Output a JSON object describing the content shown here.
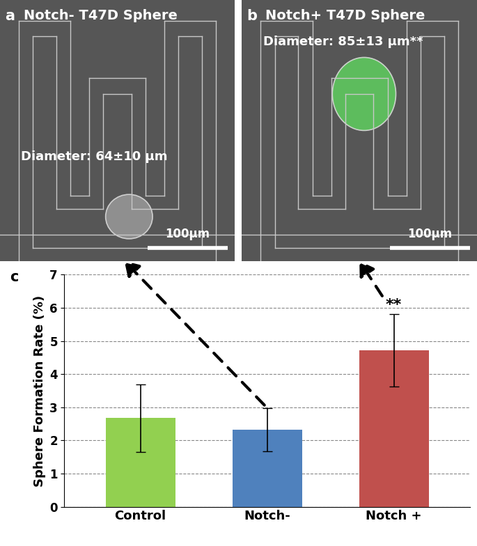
{
  "panels": [
    {
      "label": "a",
      "title": "Notch- T47D Sphere",
      "annotation": "Diameter: 64±10 μm",
      "scale_bar": "100μm"
    },
    {
      "label": "b",
      "title": "Notch+ T47D Sphere",
      "annotation": "Diameter: 85±13 μm**",
      "scale_bar": "100μm"
    }
  ],
  "chart_data": {
    "type": "bar",
    "panel_label": "c",
    "y_label": "Sphere Formation Rate (%)",
    "categories": [
      "Control",
      "Notch-",
      "Notch +"
    ],
    "values": [
      2.67,
      2.33,
      4.72
    ],
    "errors": [
      1.02,
      0.65,
      1.1
    ],
    "colors": [
      "#92d050",
      "#4f81bd",
      "#c0504d"
    ],
    "ylim": [
      0,
      7
    ],
    "yticks": [
      0,
      1,
      2,
      3,
      4,
      5,
      6,
      7
    ],
    "grid": true,
    "annotations": [
      {
        "text": "**",
        "category": "Notch +"
      }
    ]
  }
}
